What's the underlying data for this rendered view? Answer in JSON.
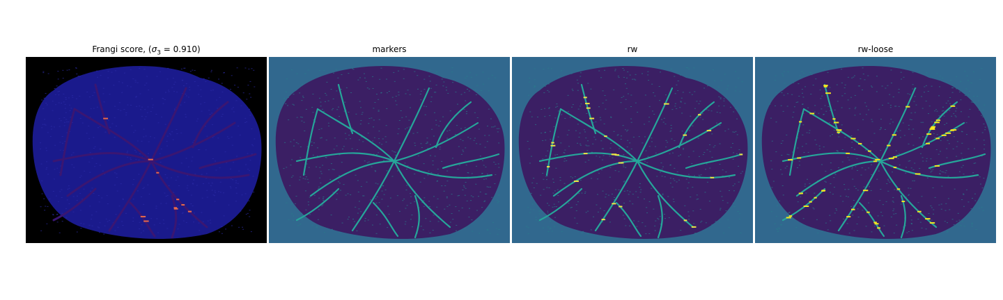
{
  "figure": {
    "panels": [
      {
        "id": "frangi",
        "title_pre": "Frangi score, (",
        "title_sigma": "σ",
        "title_sub": "3",
        "title_post": " = 0.910)",
        "background": "#000000",
        "mask": "#1a1a8c",
        "vessel": "#3a1672",
        "highlight": "#e86a4a"
      },
      {
        "id": "markers",
        "title": "markers",
        "background": "#31688e",
        "mask": "#3b1f64",
        "vessel": "#26a69a",
        "highlight": "#26a69a"
      },
      {
        "id": "rw",
        "title": "rw",
        "background": "#31688e",
        "mask": "#3b1f64",
        "vessel": "#26a69a",
        "highlight": "#f0e442"
      },
      {
        "id": "rw-loose",
        "title": "rw-loose",
        "background": "#31688e",
        "mask": "#3b1f64",
        "vessel": "#26a69a",
        "highlight": "#f5e61f"
      }
    ]
  }
}
